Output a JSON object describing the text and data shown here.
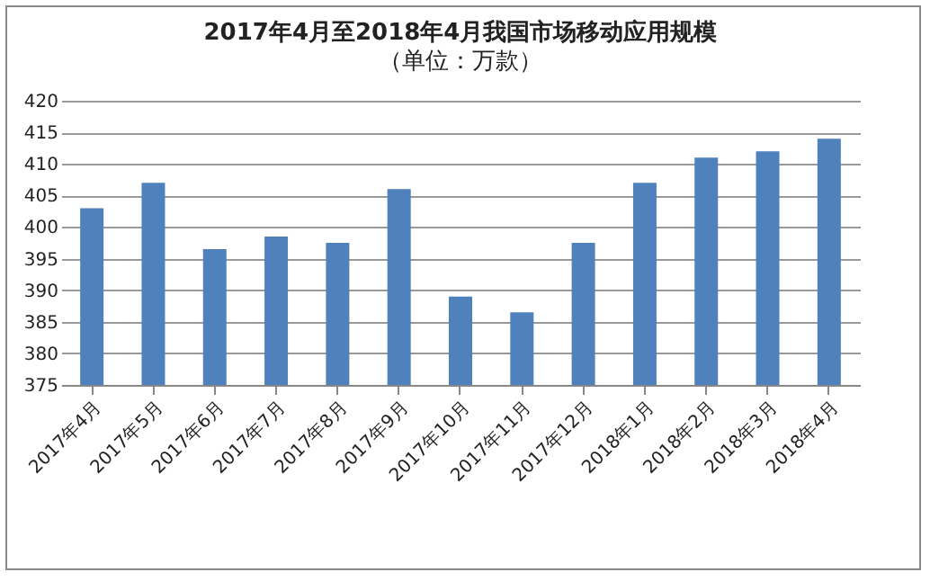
{
  "chart_data": {
    "type": "bar",
    "title": "2017年4月至2018年4月我国市场移动应用规模",
    "subtitle": "（单位：万款）",
    "categories": [
      "2017年4月",
      "2017年5月",
      "2017年6月",
      "2017年7月",
      "2017年8月",
      "2017年9月",
      "2017年10月",
      "2017年11月",
      "2017年12月",
      "2018年1月",
      "2018年2月",
      "2018年3月",
      "2018年4月"
    ],
    "values": [
      403,
      407,
      396.5,
      398.5,
      397.5,
      406,
      389,
      386.5,
      397.5,
      407,
      411,
      412,
      414
    ],
    "color": "#4f81bd",
    "ylim": [
      375,
      420
    ],
    "yticks": [
      375,
      380,
      385,
      390,
      395,
      400,
      405,
      410,
      415,
      420
    ],
    "grid": "y"
  }
}
